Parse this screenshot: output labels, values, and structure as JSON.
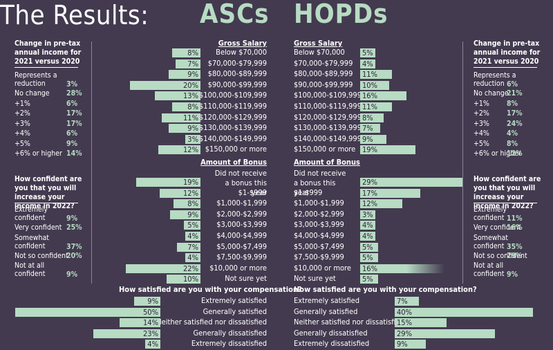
{
  "title": "The Results:",
  "headers": {
    "asc": "ASCs",
    "hopd": "HOPDs"
  },
  "left_panel": {
    "q1": {
      "title": "Change in pre-tax annual income for 2021 versus 2020",
      "items": [
        {
          "label": "Represents a reduction",
          "value": "3%"
        },
        {
          "label": "No change",
          "value": "28%"
        },
        {
          "label": "+1%",
          "value": "6%"
        },
        {
          "label": "+2%",
          "value": "17%"
        },
        {
          "label": "+3%",
          "value": "17%"
        },
        {
          "label": "+4%",
          "value": "6%"
        },
        {
          "label": "+5%",
          "value": "9%"
        },
        {
          "label": "+6% or higher",
          "value": "14%"
        }
      ]
    },
    "q2": {
      "title": "How confident are you that you will increase your income in 2022?",
      "items": [
        {
          "label": "Extremely confident",
          "value": "9%"
        },
        {
          "label": "Very confident",
          "value": "25%"
        },
        {
          "label": "Somewhat confident",
          "value": "37%"
        },
        {
          "label": "Not so confident",
          "value": "20%"
        },
        {
          "label": "Not at all confident",
          "value": "9%"
        }
      ]
    }
  },
  "right_panel": {
    "q1": {
      "title": "Change in pre-tax annual income for 2021 versus 2020",
      "items": [
        {
          "label": "Represents a reduction",
          "value": "6%"
        },
        {
          "label": "No change",
          "value": "21%"
        },
        {
          "label": "+1%",
          "value": "8%"
        },
        {
          "label": "+2%",
          "value": "17%"
        },
        {
          "label": "+3%",
          "value": "24%"
        },
        {
          "label": "+4%",
          "value": "4%"
        },
        {
          "label": "+5%",
          "value": "8%"
        },
        {
          "label": "+6% or higher",
          "value": "12%"
        }
      ]
    },
    "q2": {
      "title": "How confident are you that you will increase your income in 2022?",
      "items": [
        {
          "label": "Extremely confident",
          "value": "11%"
        },
        {
          "label": "Very confident",
          "value": "16%"
        },
        {
          "label": "Somewhat confident",
          "value": "35%"
        },
        {
          "label": "Not so confident",
          "value": "29%"
        },
        {
          "label": "Not at all confident",
          "value": "9%"
        }
      ]
    }
  },
  "chart_data": [
    {
      "type": "bar",
      "title": "Gross Salary",
      "categories": [
        "Below $70,000",
        "$70,000-$79,999",
        "$80,000-$89,999",
        "$90,000-$99,999",
        "$100,000-$109,999",
        "$110,000-$119,999",
        "$120,000-$129,999",
        "$130,000-$139,999",
        "$140,000-$149,999",
        "$150,000 or more"
      ],
      "series": [
        {
          "name": "ASCs",
          "values": [
            8,
            7,
            9,
            20,
            13,
            8,
            11,
            9,
            3,
            12
          ]
        },
        {
          "name": "HOPDs",
          "values": [
            5,
            4,
            11,
            10,
            16,
            11,
            8,
            7,
            9,
            19
          ]
        }
      ]
    },
    {
      "type": "bar",
      "title": "Amount of Bonus",
      "categories": [
        "Did not receive a bonus this year",
        "$1-$999",
        "$1,000-$1,999",
        "$2,000-$2,999",
        "$3,000-$3,999",
        "$4,000-$4,999",
        "$5,000-$7,499",
        "$7,500-$9,999",
        "$10,000 or more",
        "Not sure yet"
      ],
      "series": [
        {
          "name": "ASCs",
          "values": [
            19,
            12,
            8,
            9,
            5,
            4,
            7,
            4,
            22,
            10
          ]
        },
        {
          "name": "HOPDs",
          "values": [
            29,
            17,
            12,
            3,
            4,
            4,
            5,
            5,
            16,
            5
          ]
        }
      ]
    },
    {
      "type": "bar",
      "title": "How satisfied are you with your compensation?",
      "categories": [
        "Extremely satisfied",
        "Generally satisfied",
        "Neither satisfied nor dissatisfied",
        "Generally dissatisfied",
        "Extremely dissatisfied"
      ],
      "series": [
        {
          "name": "ASCs",
          "values": [
            9,
            50,
            14,
            23,
            4
          ]
        },
        {
          "name": "HOPDs",
          "values": [
            7,
            40,
            15,
            29,
            9
          ]
        }
      ]
    }
  ],
  "colors": {
    "background": "#433a4f",
    "bar": "#b7dbc3",
    "value_text": "#b7dbc3",
    "text": "#ffffff"
  }
}
